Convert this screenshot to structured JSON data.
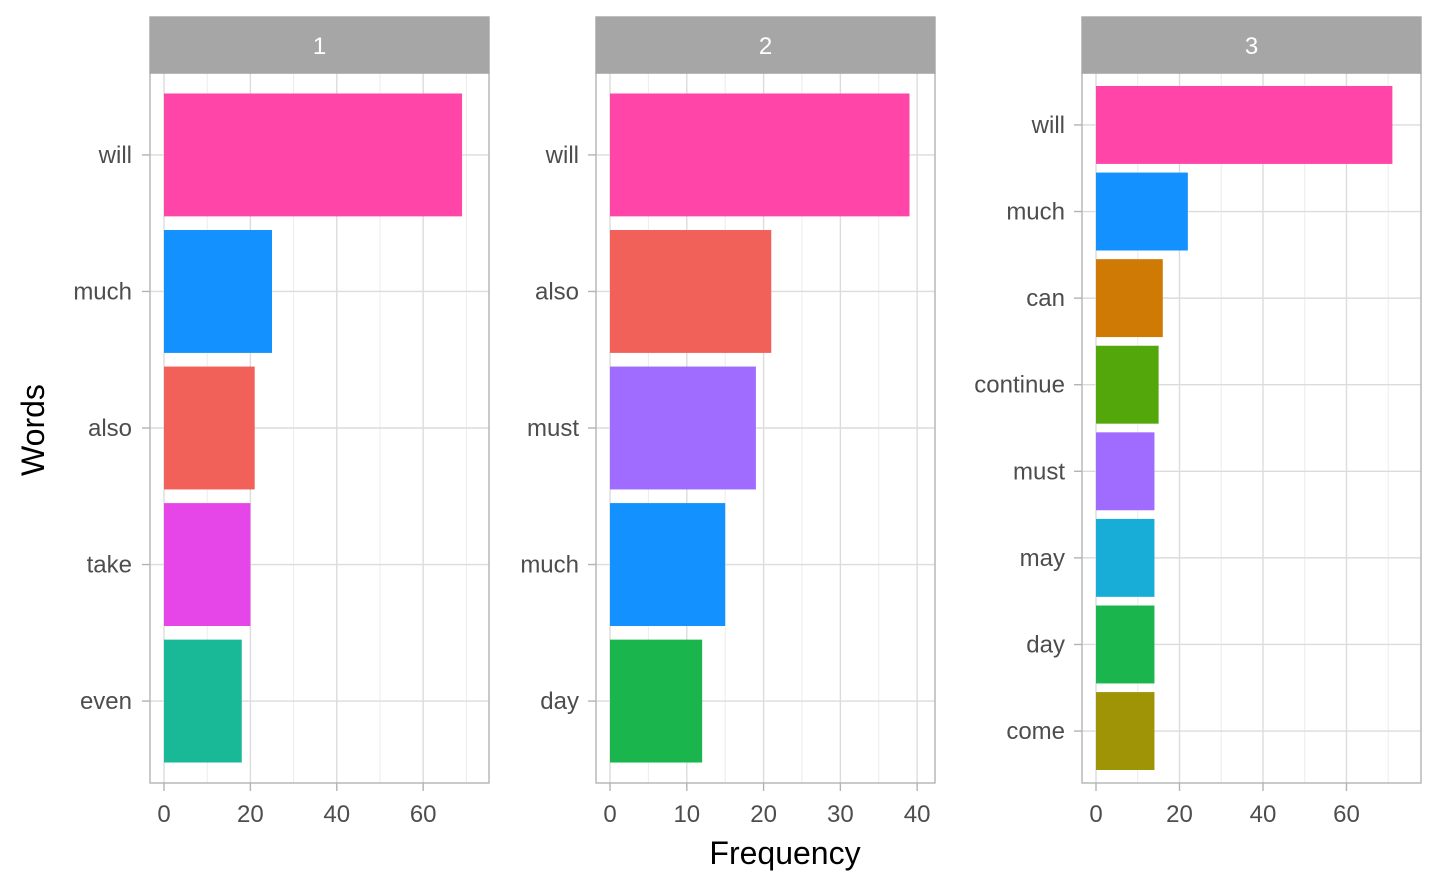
{
  "chart_data": {
    "type": "bar",
    "orientation": "horizontal",
    "xlabel": "Frequency",
    "ylabel": "Words",
    "grid": true,
    "facets": [
      {
        "strip_label": "1",
        "xlim": [
          0,
          72
        ],
        "xticks": [
          0,
          20,
          40,
          60
        ],
        "bars": [
          {
            "category": "will",
            "value": 69,
            "color": "#FF45A8"
          },
          {
            "category": "much",
            "value": 25,
            "color": "#1291FF"
          },
          {
            "category": "also",
            "value": 21,
            "color": "#F2605A"
          },
          {
            "category": "take",
            "value": 20,
            "color": "#E645E8"
          },
          {
            "category": "even",
            "value": 18,
            "color": "#19B998"
          }
        ]
      },
      {
        "strip_label": "2",
        "xlim": [
          0,
          40.5
        ],
        "xticks": [
          0,
          10,
          20,
          30,
          40
        ],
        "bars": [
          {
            "category": "will",
            "value": 39,
            "color": "#FF45A8"
          },
          {
            "category": "also",
            "value": 21,
            "color": "#F2605A"
          },
          {
            "category": "must",
            "value": 19,
            "color": "#A06BFF"
          },
          {
            "category": "much",
            "value": 15,
            "color": "#1291FF"
          },
          {
            "category": "day",
            "value": 12,
            "color": "#1AB54C"
          }
        ]
      },
      {
        "strip_label": "3",
        "xlim": [
          0,
          74.5
        ],
        "xticks": [
          0,
          20,
          40,
          60
        ],
        "bars": [
          {
            "category": "will",
            "value": 71,
            "color": "#FF45A8"
          },
          {
            "category": "much",
            "value": 22,
            "color": "#1291FF"
          },
          {
            "category": "can",
            "value": 16,
            "color": "#D07A06"
          },
          {
            "category": "continue",
            "value": 15,
            "color": "#53A70B"
          },
          {
            "category": "must",
            "value": 14,
            "color": "#A06BFF"
          },
          {
            "category": "may",
            "value": 14,
            "color": "#17ADD6"
          },
          {
            "category": "day",
            "value": 14,
            "color": "#1AB54C"
          },
          {
            "category": "come",
            "value": 14,
            "color": "#9E9406"
          }
        ]
      }
    ]
  }
}
